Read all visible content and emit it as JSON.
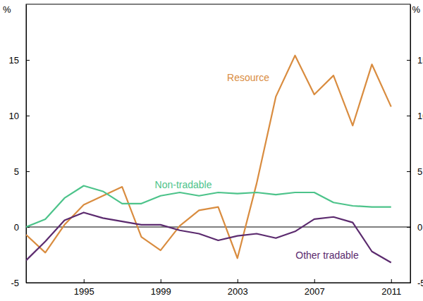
{
  "chart_data": {
    "type": "line",
    "y_label": "%",
    "x": [
      1992,
      1993,
      1994,
      1995,
      1996,
      1997,
      1998,
      1999,
      2000,
      2001,
      2002,
      2003,
      2004,
      2005,
      2006,
      2007,
      2008,
      2009,
      2010,
      2011
    ],
    "xlim": [
      1992,
      2012
    ],
    "xticks": [
      1995,
      1999,
      2003,
      2007,
      2011
    ],
    "ylim": [
      -5,
      20
    ],
    "yticks": [
      -5,
      0,
      5,
      10,
      15
    ],
    "series": [
      {
        "name": "Resource",
        "color": "#d98c3f",
        "values": [
          -0.7,
          -2.3,
          0.2,
          2.0,
          2.8,
          3.6,
          -0.9,
          -2.1,
          0.1,
          1.5,
          1.8,
          -2.8,
          3.9,
          11.7,
          15.4,
          11.9,
          13.6,
          9.1,
          14.6,
          10.8
        ]
      },
      {
        "name": "Non-tradable",
        "color": "#4cc38a",
        "values": [
          0.0,
          0.7,
          2.6,
          3.7,
          3.2,
          2.1,
          2.1,
          2.8,
          3.1,
          2.8,
          3.1,
          3.0,
          3.1,
          2.9,
          3.1,
          3.1,
          2.2,
          1.9,
          1.8,
          1.8
        ]
      },
      {
        "name": "Other tradable",
        "color": "#5b2a6e",
        "values": [
          -3.0,
          -1.3,
          0.6,
          1.3,
          0.8,
          0.5,
          0.2,
          0.2,
          -0.3,
          -0.6,
          -1.2,
          -0.8,
          -0.6,
          -1.0,
          -0.4,
          0.7,
          0.9,
          0.4,
          -2.2,
          -3.2
        ]
      }
    ]
  }
}
